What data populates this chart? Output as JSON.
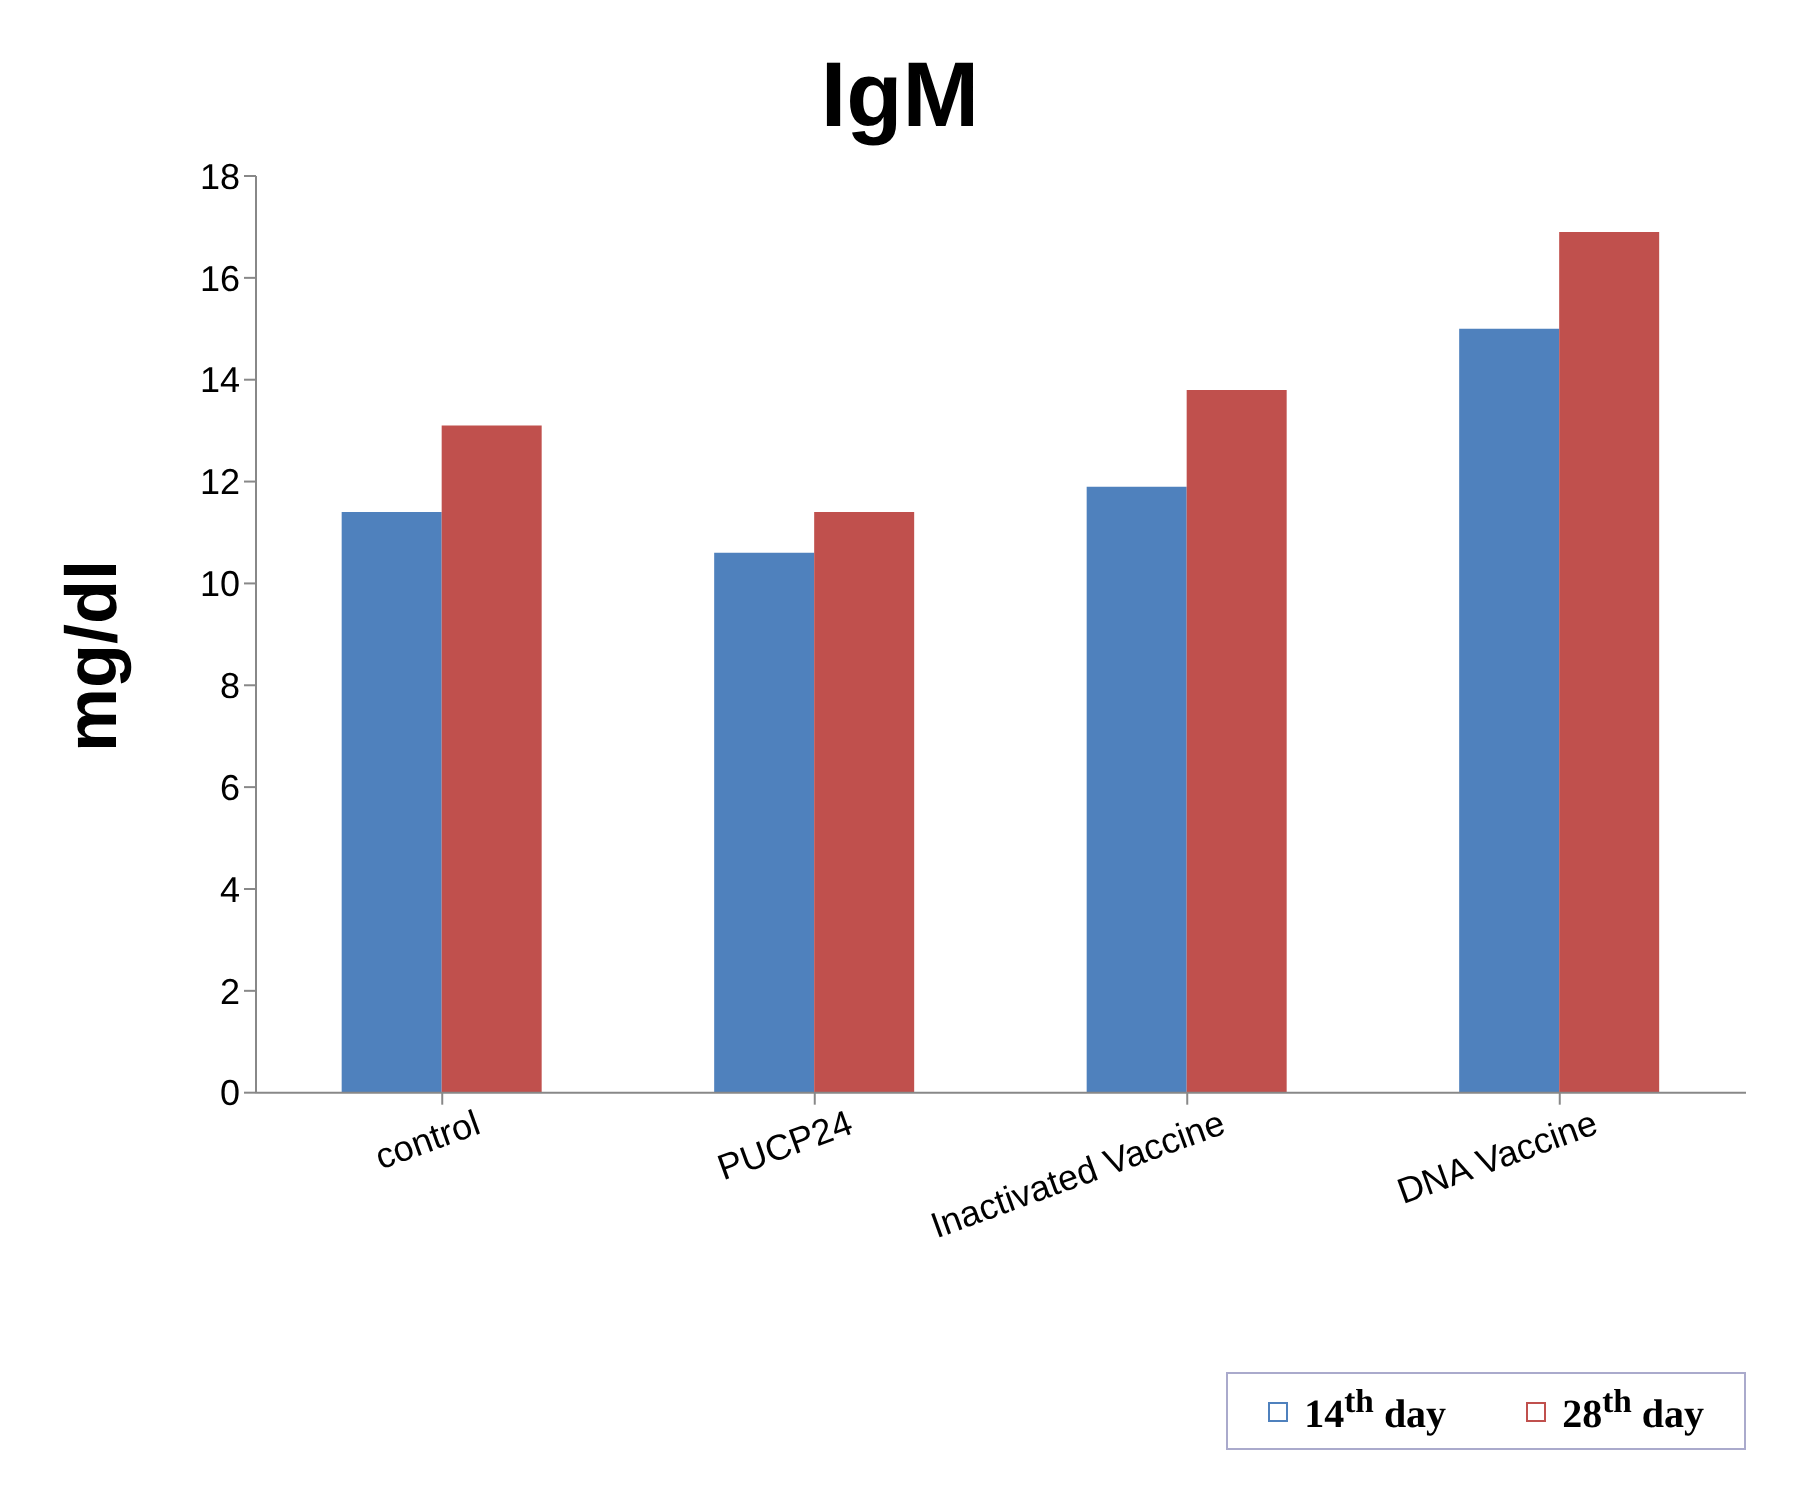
{
  "chart_data": {
    "type": "bar",
    "title": "IgM",
    "ylabel": "mg/dl",
    "categories": [
      "control",
      "PUCP24",
      "Inactivated Vaccine",
      "DNA Vaccine"
    ],
    "series": [
      {
        "name": "14$^{th}$ day",
        "color": "#4f81bd",
        "values": [
          11.4,
          10.6,
          11.9,
          15.0
        ]
      },
      {
        "name": "28$^{th}$ day",
        "color": "#c0504d",
        "values": [
          13.1,
          11.4,
          13.8,
          16.9
        ]
      }
    ],
    "ylim": [
      0,
      18
    ],
    "yticks": [
      0,
      2,
      4,
      6,
      8,
      10,
      12,
      14,
      16,
      18
    ],
    "grid": false,
    "legend": "bottom right"
  }
}
